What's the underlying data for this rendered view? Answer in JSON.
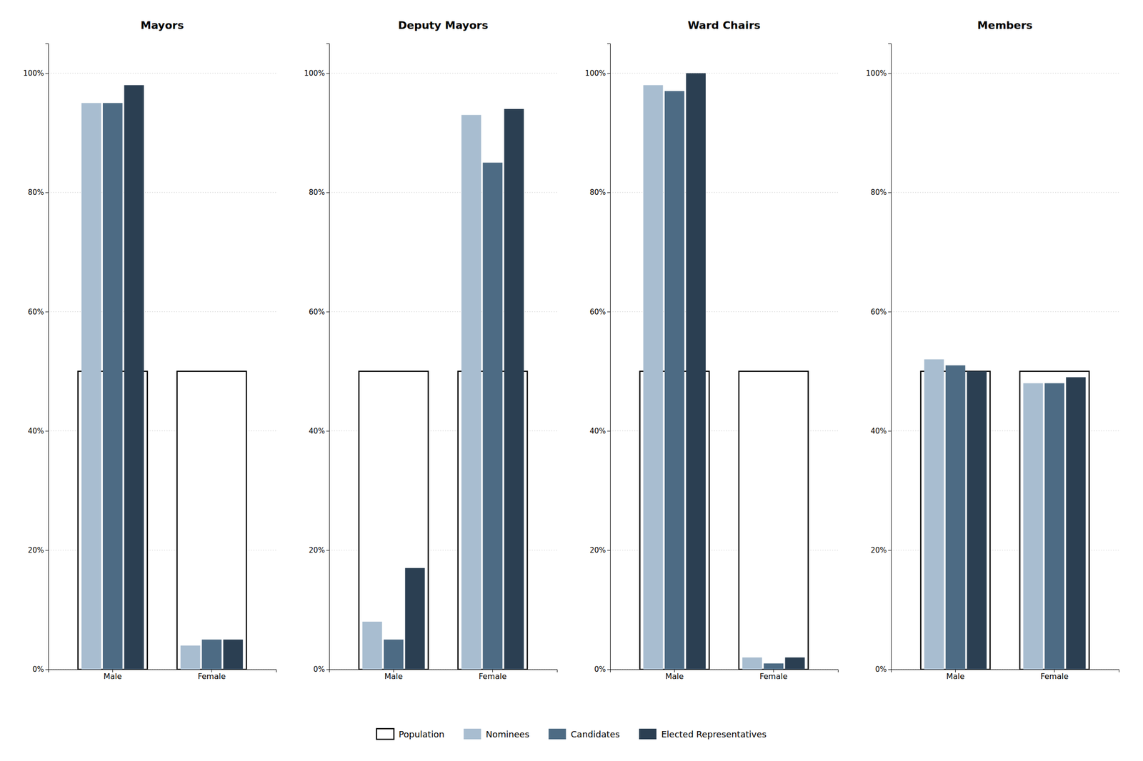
{
  "chart_data": [
    {
      "type": "bar",
      "title": "Mayors",
      "categories": [
        "Male",
        "Female"
      ],
      "series": [
        {
          "name": "Population",
          "type": "outline",
          "color": "#000000",
          "values": [
            50,
            50
          ]
        },
        {
          "name": "Nominees",
          "color": "#a8bdd0",
          "values": [
            95,
            4
          ]
        },
        {
          "name": "Candidates",
          "color": "#4d6b84",
          "values": [
            95,
            5
          ]
        },
        {
          "name": "Elected Representatives",
          "color": "#2b3f52",
          "values": [
            98,
            5
          ]
        }
      ],
      "ylim": [
        0,
        105
      ],
      "yticks": [
        {
          "value": 0,
          "label": "0%"
        },
        {
          "value": 20,
          "label": "20%"
        },
        {
          "value": 40,
          "label": "40%"
        },
        {
          "value": 60,
          "label": "60%"
        },
        {
          "value": 80,
          "label": "80%"
        },
        {
          "value": 100,
          "label": "100%"
        }
      ],
      "grid": true,
      "legend": "bottom"
    },
    {
      "type": "bar",
      "title": "Deputy Mayors",
      "categories": [
        "Male",
        "Female"
      ],
      "series": [
        {
          "name": "Population",
          "type": "outline",
          "color": "#000000",
          "values": [
            50,
            50
          ]
        },
        {
          "name": "Nominees",
          "color": "#a8bdd0",
          "values": [
            8,
            93
          ]
        },
        {
          "name": "Candidates",
          "color": "#4d6b84",
          "values": [
            5,
            85
          ]
        },
        {
          "name": "Elected Representatives",
          "color": "#2b3f52",
          "values": [
            17,
            94
          ]
        }
      ],
      "ylim": [
        0,
        105
      ],
      "yticks": [
        {
          "value": 0,
          "label": "0%"
        },
        {
          "value": 20,
          "label": "20%"
        },
        {
          "value": 40,
          "label": "40%"
        },
        {
          "value": 60,
          "label": "60%"
        },
        {
          "value": 80,
          "label": "80%"
        },
        {
          "value": 100,
          "label": "100%"
        }
      ],
      "grid": true,
      "legend": "bottom"
    },
    {
      "type": "bar",
      "title": "Ward Chairs",
      "categories": [
        "Male",
        "Female"
      ],
      "series": [
        {
          "name": "Population",
          "type": "outline",
          "color": "#000000",
          "values": [
            50,
            50
          ]
        },
        {
          "name": "Nominees",
          "color": "#a8bdd0",
          "values": [
            98,
            2
          ]
        },
        {
          "name": "Candidates",
          "color": "#4d6b84",
          "values": [
            97,
            1
          ]
        },
        {
          "name": "Elected Representatives",
          "color": "#2b3f52",
          "values": [
            100,
            2
          ]
        }
      ],
      "ylim": [
        0,
        105
      ],
      "yticks": [
        {
          "value": 0,
          "label": "0%"
        },
        {
          "value": 20,
          "label": "20%"
        },
        {
          "value": 40,
          "label": "40%"
        },
        {
          "value": 60,
          "label": "60%"
        },
        {
          "value": 80,
          "label": "80%"
        },
        {
          "value": 100,
          "label": "100%"
        }
      ],
      "grid": true,
      "legend": "bottom"
    },
    {
      "type": "bar",
      "title": "Members",
      "categories": [
        "Male",
        "Female"
      ],
      "series": [
        {
          "name": "Population",
          "type": "outline",
          "color": "#000000",
          "values": [
            50,
            50
          ]
        },
        {
          "name": "Nominees",
          "color": "#a8bdd0",
          "values": [
            52,
            48
          ]
        },
        {
          "name": "Candidates",
          "color": "#4d6b84",
          "values": [
            51,
            48
          ]
        },
        {
          "name": "Elected Representatives",
          "color": "#2b3f52",
          "values": [
            50,
            49
          ]
        }
      ],
      "ylim": [
        0,
        105
      ],
      "yticks": [
        {
          "value": 0,
          "label": "0%"
        },
        {
          "value": 20,
          "label": "20%"
        },
        {
          "value": 40,
          "label": "40%"
        },
        {
          "value": 60,
          "label": "60%"
        },
        {
          "value": 80,
          "label": "80%"
        },
        {
          "value": 100,
          "label": "100%"
        }
      ],
      "grid": true,
      "legend": "bottom"
    }
  ]
}
